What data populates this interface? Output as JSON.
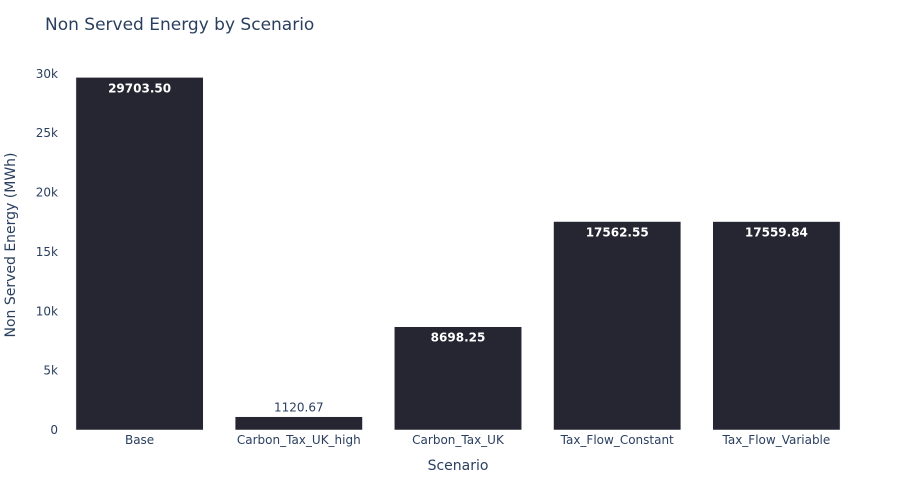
{
  "chart_data": {
    "type": "bar",
    "title": "Non Served Energy by Scenario",
    "xlabel": "Scenario",
    "ylabel": "Non Served Energy (MWh)",
    "categories": [
      "Base",
      "Carbon_Tax_UK_high",
      "Carbon_Tax_UK",
      "Tax_Flow_Constant",
      "Tax_Flow_Variable"
    ],
    "values": [
      29703.5,
      1120.67,
      8698.25,
      17562.55,
      17559.84
    ],
    "data_labels": [
      "29703.50",
      "1120.67",
      "8698.25",
      "17562.55",
      "17559.84"
    ],
    "ylim": [
      0,
      31000
    ],
    "yticks": [
      0,
      5000,
      10000,
      15000,
      20000,
      25000,
      30000
    ],
    "ytick_labels": [
      "0",
      "5k",
      "10k",
      "15k",
      "20k",
      "25k",
      "30k"
    ],
    "grid": false,
    "legend": "none",
    "bar_color": "#252632",
    "text_color": "#2a3f5f"
  }
}
